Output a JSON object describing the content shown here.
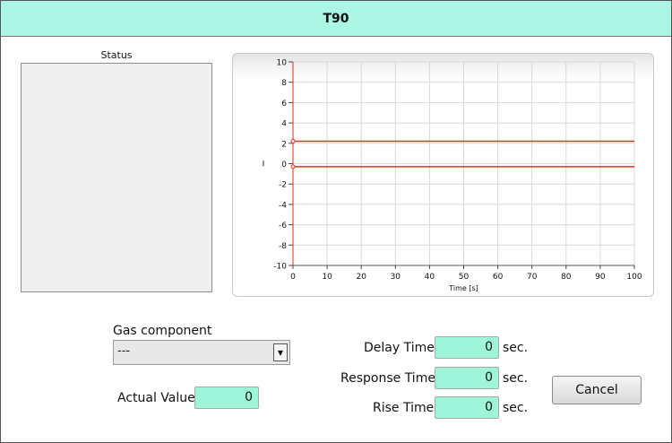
{
  "window": {
    "title": "T90"
  },
  "status": {
    "label": "Status"
  },
  "chart_data": {
    "type": "line",
    "xlabel": "Time [s]",
    "ylabel": "I",
    "xlim": [
      0,
      100
    ],
    "ylim": [
      -10,
      10
    ],
    "x_ticks": [
      0,
      10,
      20,
      30,
      40,
      50,
      60,
      70,
      80,
      90,
      100
    ],
    "y_ticks": [
      10,
      8,
      6,
      4,
      2,
      0,
      -2,
      -4,
      -6,
      -8,
      -10
    ],
    "grid": true,
    "series": [
      {
        "color": "#e03020",
        "x": [
          0,
          100
        ],
        "y": [
          2.2,
          2.2
        ]
      },
      {
        "color": "#e03020",
        "x": [
          0,
          100
        ],
        "y": [
          -0.3,
          -0.3
        ]
      }
    ]
  },
  "gas_component": {
    "label": "Gas component",
    "value": "---"
  },
  "actual_value": {
    "label": "Actual Value",
    "value": "0"
  },
  "delay_time": {
    "label": "Delay Time",
    "value": "0",
    "unit": "sec."
  },
  "response_time": {
    "label": "Response Time",
    "value": "0",
    "unit": "sec."
  },
  "rise_time": {
    "label": "Rise Time",
    "value": "0",
    "unit": "sec."
  },
  "cancel_button": {
    "label": "Cancel"
  }
}
